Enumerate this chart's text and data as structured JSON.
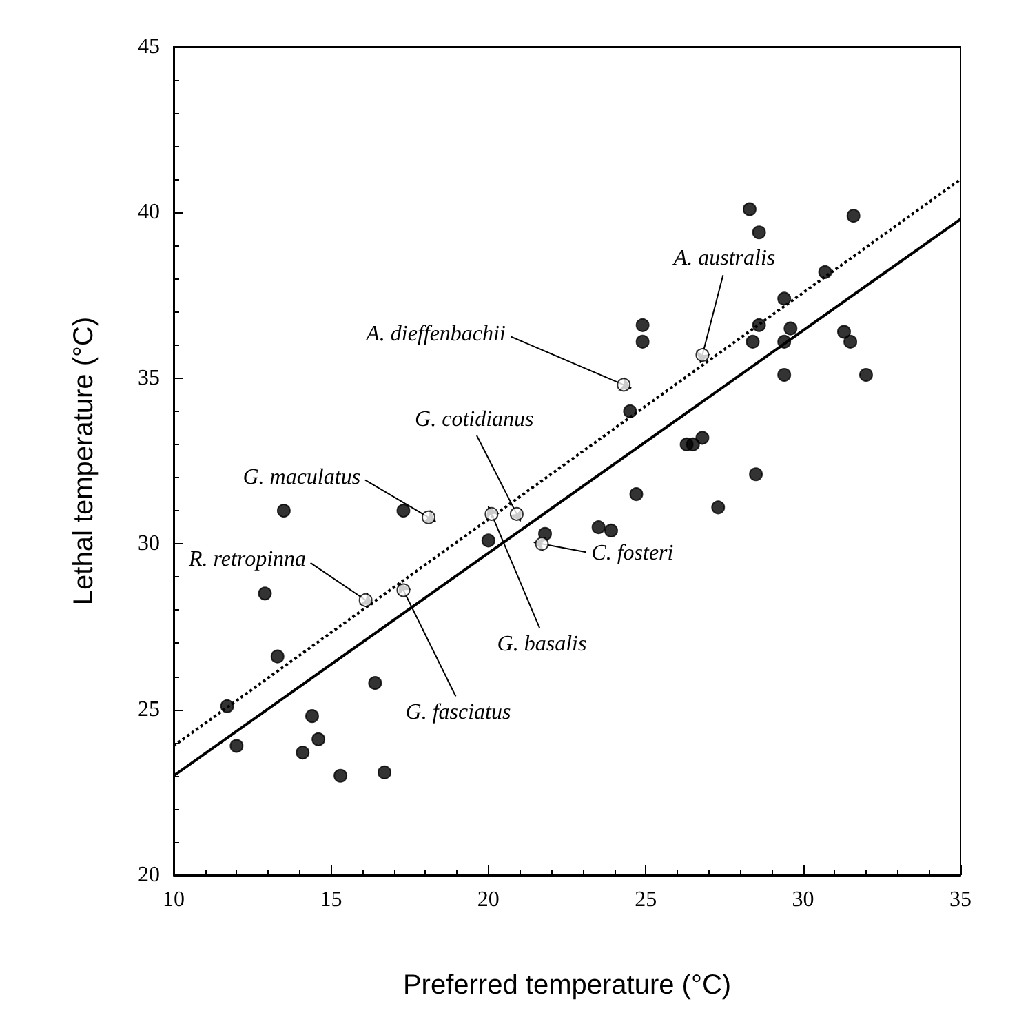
{
  "chart_data": {
    "type": "scatter",
    "xlabel": "Preferred temperature (°C)",
    "ylabel": "Lethal temperature (°C)",
    "xlim": [
      10,
      35
    ],
    "ylim": [
      20,
      45
    ],
    "xticks": [
      10,
      15,
      20,
      25,
      30,
      35
    ],
    "yticks": [
      20,
      25,
      30,
      35,
      40,
      45
    ],
    "grid": false,
    "series": [
      {
        "marker": "circle",
        "color": "#000000",
        "x": [
          11.7,
          12.0,
          12.9,
          13.3,
          13.5,
          14.1,
          14.4,
          14.6,
          15.3,
          16.4,
          16.7,
          17.3,
          20.0,
          21.8,
          23.5,
          23.9,
          24.5,
          24.7,
          24.9,
          24.9,
          26.3,
          26.5,
          26.8,
          27.3,
          28.3,
          28.4,
          28.5,
          28.6,
          28.6,
          29.4,
          29.4,
          29.4,
          29.6,
          30.7,
          31.3,
          31.5,
          31.6,
          32.0
        ],
        "values": [
          25.1,
          23.9,
          28.5,
          26.6,
          31.0,
          23.7,
          24.8,
          24.1,
          23.0,
          25.8,
          23.1,
          31.0,
          30.1,
          30.3,
          30.5,
          30.4,
          34.0,
          31.5,
          36.6,
          36.1,
          33.0,
          33.0,
          33.2,
          31.1,
          40.1,
          36.1,
          32.1,
          39.4,
          36.6,
          37.4,
          36.1,
          35.1,
          36.5,
          38.2,
          36.4,
          36.1,
          39.9,
          35.1
        ]
      },
      {
        "marker": "circle",
        "color": "#ffffff",
        "x": [
          16.1,
          18.1,
          20.9,
          20.1,
          17.3,
          21.7,
          24.3,
          26.8
        ],
        "values": [
          28.3,
          30.8,
          30.9,
          30.9,
          28.6,
          30.0,
          34.8,
          35.7
        ]
      },
      {
        "type": "line",
        "line_style": "solid",
        "marker": "none",
        "color": "#000000",
        "x": [
          10,
          35
        ],
        "values": [
          23.0,
          39.8
        ]
      },
      {
        "type": "line",
        "line_style": "dotted",
        "marker": "none",
        "color": "#000000",
        "x": [
          10,
          35
        ],
        "values": [
          23.9,
          41.0
        ]
      }
    ],
    "annotations": [
      {
        "text": "R. retropinna",
        "x": 16.1,
        "y": 28.3
      },
      {
        "text": "G. maculatus",
        "x": 18.1,
        "y": 30.8
      },
      {
        "text": "G. cotidianus",
        "x": 20.9,
        "y": 30.9
      },
      {
        "text": "G. basalis",
        "x": 20.1,
        "y": 30.9
      },
      {
        "text": "G. fasciatus",
        "x": 17.3,
        "y": 28.6
      },
      {
        "text": "C. fosteri",
        "x": 21.7,
        "y": 30.0
      },
      {
        "text": "A. dieffenbachii",
        "x": 24.3,
        "y": 34.8
      },
      {
        "text": "A. australis",
        "x": 26.8,
        "y": 35.7
      }
    ]
  }
}
